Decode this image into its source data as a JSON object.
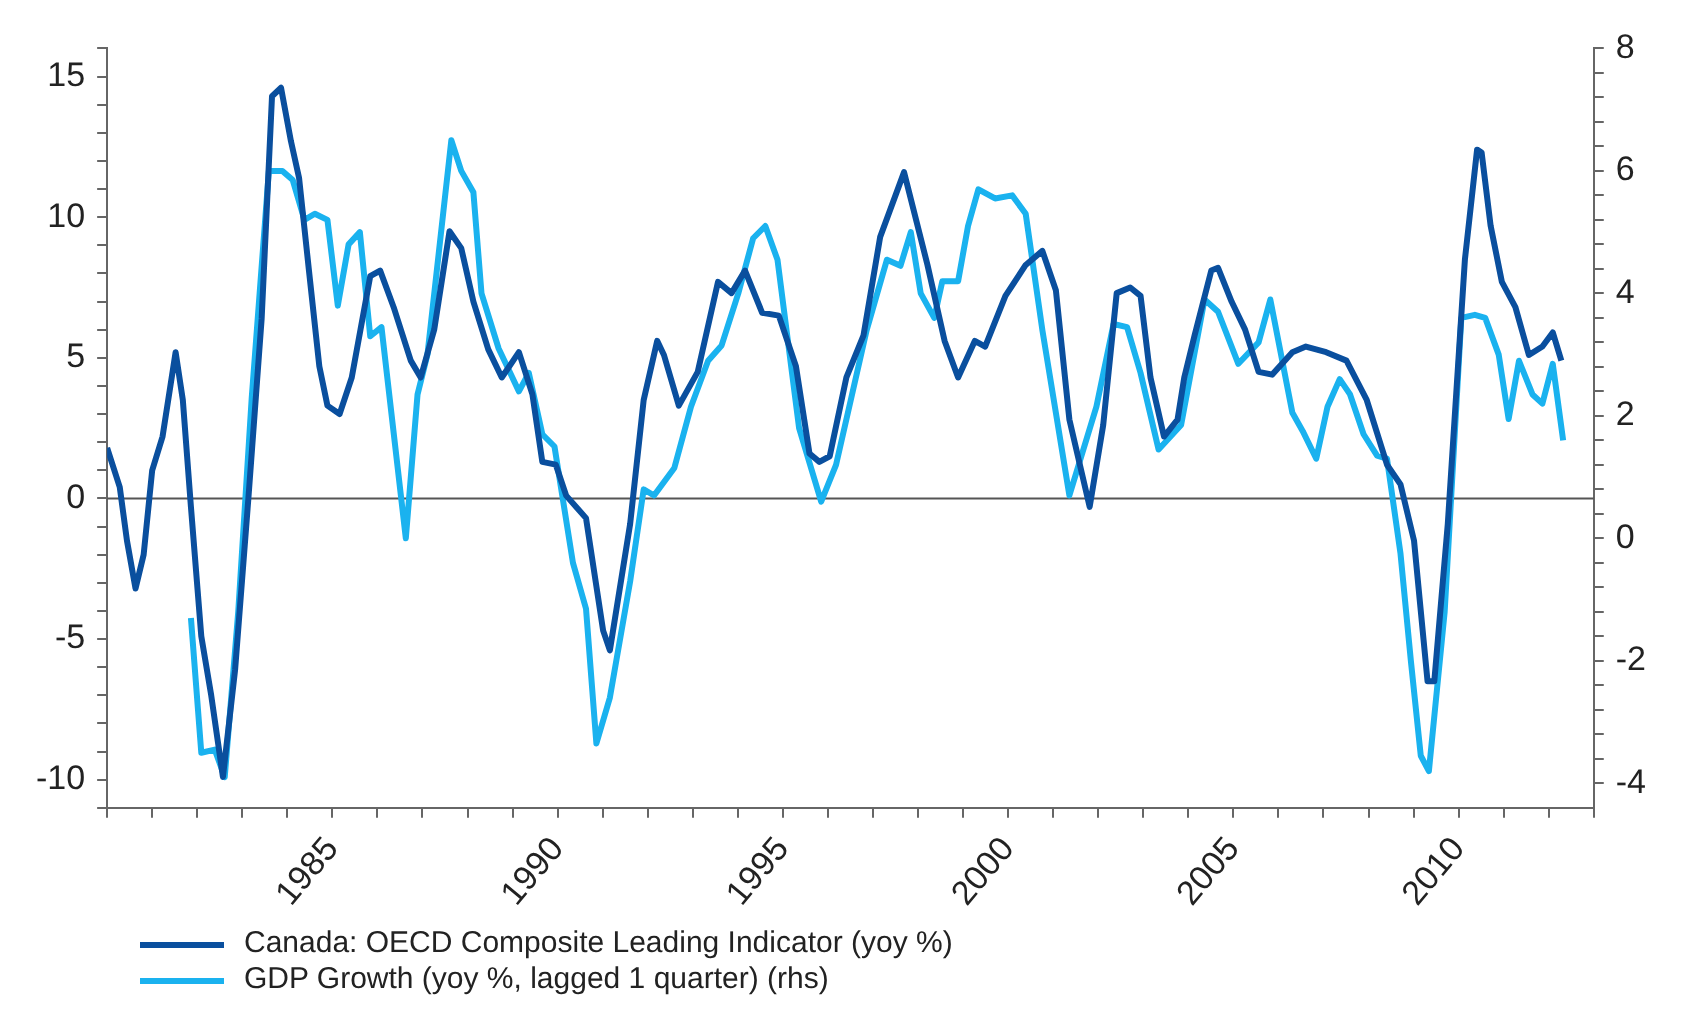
{
  "chart_data": {
    "type": "line",
    "legend": "bottom left",
    "grid": false,
    "marker": "none",
    "line_style": "solid",
    "xlim": [
      1980,
      2013
    ],
    "xticks": [
      {
        "value": 1980,
        "label": null
      },
      {
        "value": 1981,
        "label": null
      },
      {
        "value": 1982,
        "label": null
      },
      {
        "value": 1983,
        "label": null
      },
      {
        "value": 1984,
        "label": null
      },
      1985,
      {
        "value": 1986,
        "label": null
      },
      {
        "value": 1987,
        "label": null
      },
      {
        "value": 1988,
        "label": null
      },
      {
        "value": 1989,
        "label": null
      },
      1990,
      {
        "value": 1991,
        "label": null
      },
      {
        "value": 1992,
        "label": null
      },
      {
        "value": 1993,
        "label": null
      },
      {
        "value": 1994,
        "label": null
      },
      1995,
      {
        "value": 1996,
        "label": null
      },
      {
        "value": 1997,
        "label": null
      },
      {
        "value": 1998,
        "label": null
      },
      {
        "value": 1999,
        "label": null
      },
      2000,
      {
        "value": 2001,
        "label": null
      },
      {
        "value": 2002,
        "label": null
      },
      {
        "value": 2003,
        "label": null
      },
      {
        "value": 2004,
        "label": null
      },
      2005,
      {
        "value": 2006,
        "label": null
      },
      {
        "value": 2007,
        "label": null
      },
      {
        "value": 2008,
        "label": null
      },
      {
        "value": 2009,
        "label": null
      },
      2010,
      {
        "value": 2011,
        "label": null
      },
      {
        "value": 2012,
        "label": null
      },
      {
        "value": 2013,
        "label": null
      }
    ],
    "ylim": [
      -11,
      16
    ],
    "yticks": [
      {
        "value": -11,
        "label": null
      },
      -10,
      {
        "value": -9,
        "label": null
      },
      {
        "value": -8,
        "label": null
      },
      {
        "value": -7,
        "label": null
      },
      {
        "value": -6,
        "label": null
      },
      -5,
      {
        "value": -4,
        "label": null
      },
      {
        "value": -3,
        "label": null
      },
      {
        "value": -2,
        "label": null
      },
      {
        "value": -1,
        "label": null
      },
      0,
      {
        "value": 1,
        "label": null
      },
      {
        "value": 2,
        "label": null
      },
      {
        "value": 3,
        "label": null
      },
      {
        "value": 4,
        "label": null
      },
      5,
      {
        "value": 6,
        "label": null
      },
      {
        "value": 7,
        "label": null
      },
      {
        "value": 8,
        "label": null
      },
      {
        "value": 9,
        "label": null
      },
      10,
      {
        "value": 11,
        "label": null
      },
      {
        "value": 12,
        "label": null
      },
      {
        "value": 13,
        "label": null
      },
      {
        "value": 14,
        "label": null
      },
      15,
      {
        "value": 16,
        "label": null
      }
    ],
    "y2lim": [
      -4.4,
      8
    ],
    "y2ticks": [
      -4,
      {
        "value": -3.6,
        "label": null
      },
      {
        "value": -3.2,
        "label": null
      },
      {
        "value": -2.8,
        "label": null
      },
      {
        "value": -2.4,
        "label": null
      },
      -2,
      {
        "value": -1.6,
        "label": null
      },
      {
        "value": -1.2,
        "label": null
      },
      {
        "value": -0.8,
        "label": null
      },
      {
        "value": -0.4,
        "label": null
      },
      0,
      {
        "value": 0.4,
        "label": null
      },
      {
        "value": 0.8,
        "label": null
      },
      {
        "value": 1.2,
        "label": null
      },
      {
        "value": 1.6,
        "label": null
      },
      2,
      {
        "value": 2.4,
        "label": null
      },
      {
        "value": 2.8,
        "label": null
      },
      {
        "value": 3.2,
        "label": null
      },
      {
        "value": 3.6,
        "label": null
      },
      4,
      {
        "value": 4.4,
        "label": null
      },
      {
        "value": 4.8,
        "label": null
      },
      {
        "value": 5.2,
        "label": null
      },
      {
        "value": 5.6,
        "label": null
      },
      6,
      {
        "value": 6.4,
        "label": null
      },
      {
        "value": 6.8,
        "label": null
      },
      {
        "value": 7.2,
        "label": null
      },
      {
        "value": 7.6,
        "label": null
      },
      8
    ],
    "ref_lines": [
      {
        "axis": "y",
        "value": 0,
        "color": "#555555"
      }
    ],
    "series": [
      {
        "name": "Canada: OECD Composite Leading Indicator (yoy %)",
        "color": "#0a4f9e",
        "x": [
          1980.0,
          1980.28,
          1980.44,
          1980.63,
          1980.81,
          1981.0,
          1981.23,
          1981.52,
          1981.68,
          1981.86,
          1982.09,
          1982.31,
          1982.57,
          1982.84,
          1983.14,
          1983.43,
          1983.66,
          1983.86,
          1984.08,
          1984.26,
          1984.48,
          1984.71,
          1984.89,
          1985.16,
          1985.43,
          1985.84,
          1986.06,
          1986.36,
          1986.74,
          1986.96,
          1987.26,
          1987.6,
          1987.86,
          1988.13,
          1988.46,
          1988.76,
          1989.14,
          1989.44,
          1989.66,
          1989.96,
          1990.19,
          1990.63,
          1991.01,
          1991.16,
          1991.61,
          1991.91,
          1992.21,
          1992.36,
          1992.69,
          1993.11,
          1993.56,
          1993.86,
          1994.16,
          1994.54,
          1994.91,
          1995.29,
          1995.59,
          1995.81,
          1996.04,
          1996.41,
          1996.79,
          1997.16,
          1997.69,
          1998.21,
          1998.59,
          1998.89,
          1999.26,
          1999.49,
          1999.94,
          2000.39,
          2000.76,
          2001.06,
          2001.36,
          2001.81,
          2002.11,
          2002.41,
          2002.71,
          2002.94,
          2003.16,
          2003.46,
          2003.76,
          2003.91,
          2004.14,
          2004.51,
          2004.66,
          2004.96,
          2005.26,
          2005.56,
          2005.86,
          2006.31,
          2006.61,
          2007.06,
          2007.51,
          2007.96,
          2008.41,
          2008.71,
          2009.01,
          2009.31,
          2009.46,
          2009.76,
          2010.14,
          2010.41,
          2010.51,
          2010.71,
          2010.96,
          2011.26,
          2011.56,
          2011.86,
          2012.09,
          2012.28
        ],
        "values": [
          1.8,
          0.4,
          -1.5,
          -3.2,
          -2.0,
          1.0,
          2.2,
          5.2,
          3.5,
          -0.3,
          -4.9,
          -7.0,
          -9.9,
          -6.1,
          0.1,
          6.4,
          14.3,
          14.6,
          12.7,
          11.4,
          8.1,
          4.7,
          3.3,
          3.0,
          4.3,
          7.9,
          8.1,
          6.8,
          4.9,
          4.3,
          6.0,
          9.5,
          8.9,
          7.0,
          5.3,
          4.3,
          5.2,
          3.7,
          1.3,
          1.2,
          0.1,
          -0.7,
          -4.7,
          -5.4,
          -0.9,
          3.5,
          5.6,
          5.1,
          3.3,
          4.5,
          7.7,
          7.3,
          8.1,
          6.6,
          6.5,
          4.7,
          1.6,
          1.3,
          1.5,
          4.3,
          5.8,
          9.3,
          11.6,
          8.3,
          5.6,
          4.3,
          5.6,
          5.4,
          7.2,
          8.3,
          8.8,
          7.4,
          2.8,
          -0.3,
          2.6,
          7.3,
          7.5,
          7.2,
          4.3,
          2.2,
          2.8,
          4.3,
          5.8,
          8.1,
          8.2,
          7.0,
          6.0,
          4.5,
          4.4,
          5.2,
          5.4,
          5.2,
          4.9,
          3.5,
          1.2,
          0.5,
          -1.5,
          -6.5,
          -6.5,
          -0.9,
          8.5,
          12.4,
          12.3,
          9.7,
          7.7,
          6.8,
          5.1,
          5.4,
          5.9,
          4.9
        ]
      },
      {
        "name": "GDP Growth (yoy %, lagged 1 quarter) (rhs)",
        "color": "#1ab2ef",
        "axis": "y2",
        "x": [
          1981.86,
          1982.09,
          1982.39,
          1982.61,
          1982.91,
          1983.21,
          1983.59,
          1983.89,
          1984.12,
          1984.38,
          1984.61,
          1984.89,
          1985.12,
          1985.36,
          1985.61,
          1985.84,
          1986.09,
          1986.63,
          1986.89,
          1987.11,
          1987.64,
          1987.86,
          1988.13,
          1988.31,
          1988.69,
          1989.14,
          1989.36,
          1989.66,
          1989.93,
          1990.34,
          1990.63,
          1990.86,
          1991.16,
          1991.61,
          1991.91,
          1992.14,
          1992.59,
          1992.96,
          1993.34,
          1993.64,
          1994.01,
          1994.34,
          1994.61,
          1994.88,
          1995.36,
          1995.85,
          1996.18,
          1996.86,
          1997.31,
          1997.61,
          1997.84,
          1998.06,
          1998.36,
          1998.54,
          1998.89,
          1999.11,
          1999.34,
          1999.71,
          2000.09,
          2000.39,
          2000.76,
          2001.36,
          2001.96,
          2002.34,
          2002.64,
          2002.94,
          2003.34,
          2003.84,
          2004.36,
          2004.66,
          2005.11,
          2005.56,
          2005.82,
          2006.31,
          2006.54,
          2006.84,
          2007.09,
          2007.36,
          2007.59,
          2007.89,
          2008.19,
          2008.41,
          2008.71,
          2008.94,
          2009.16,
          2009.34,
          2009.69,
          2010.06,
          2010.36,
          2010.59,
          2010.89,
          2011.11,
          2011.34,
          2011.64,
          2011.86,
          2012.09,
          2012.32
        ],
        "values": [
          -1.3,
          -3.5,
          -3.45,
          -3.9,
          -1.2,
          2.3,
          6.0,
          6.0,
          5.85,
          5.2,
          5.3,
          5.2,
          3.8,
          4.8,
          5.0,
          3.3,
          3.45,
          0.0,
          2.35,
          3.0,
          6.5,
          6.0,
          5.65,
          4.0,
          3.1,
          2.4,
          2.7,
          1.7,
          1.5,
          -0.4,
          -1.15,
          -3.35,
          -2.6,
          -0.7,
          0.8,
          0.7,
          1.15,
          2.15,
          2.9,
          3.15,
          4.0,
          4.9,
          5.1,
          4.55,
          1.8,
          0.6,
          1.2,
          3.4,
          4.55,
          4.45,
          5.0,
          4.0,
          3.6,
          4.2,
          4.2,
          5.1,
          5.7,
          5.55,
          5.6,
          5.3,
          3.4,
          0.7,
          2.15,
          3.5,
          3.45,
          2.7,
          1.45,
          1.85,
          3.9,
          3.7,
          2.85,
          3.2,
          3.9,
          2.05,
          1.75,
          1.3,
          2.15,
          2.6,
          2.35,
          1.7,
          1.35,
          1.3,
          -0.25,
          -2.0,
          -3.55,
          -3.8,
          -1.2,
          3.6,
          3.65,
          3.6,
          3.0,
          1.95,
          2.9,
          2.35,
          2.2,
          2.85,
          1.6
        ]
      }
    ]
  }
}
